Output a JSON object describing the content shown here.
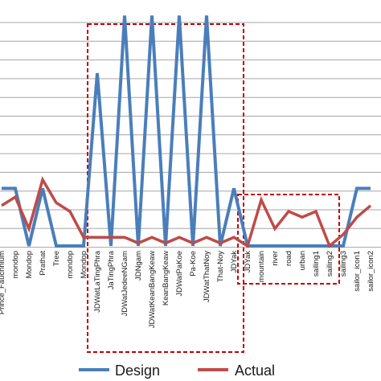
{
  "chart_data": {
    "type": "line",
    "categories": [
      "Prince_Faucnnium",
      "mondop",
      "Mondop",
      "Prathat",
      "Tree",
      "mondop",
      "Mondop",
      "JDWatLaTingPhra",
      "JaTingPhra",
      "JDWatJedeeNGam",
      "JDNgam",
      "JDWatKeanBangKeaw",
      "KeanBangKeaw",
      "JDWatPaKoe",
      "Pa-Koe",
      "JDWatThatNoy",
      "That-Noy",
      "JDYak",
      "JDYak",
      "mountain",
      "river",
      "road",
      "urban",
      "sailing1",
      "sailing2",
      "sailing3",
      "sailor_icon1",
      "sailor_icon2"
    ],
    "series": [
      {
        "name": "Design",
        "color": "#4a7ebb",
        "values": [
          1,
          1,
          0,
          1,
          0,
          0,
          0,
          3,
          0,
          4,
          0,
          4,
          0,
          4,
          0,
          4,
          0,
          1,
          0,
          0,
          0,
          0,
          0,
          0,
          0,
          0,
          1,
          1
        ]
      },
      {
        "name": "Actual",
        "color": "#be4b48",
        "values": [
          0.7,
          0.85,
          0.3,
          1.15,
          0.75,
          0.6,
          0.15,
          0.15,
          0.15,
          0.15,
          0.05,
          0.15,
          0.05,
          0.15,
          0.05,
          0.15,
          0.05,
          0.15,
          0.0,
          0.8,
          0.3,
          0.6,
          0.5,
          0.6,
          0.0,
          0.2,
          0.5,
          0.7
        ]
      }
    ],
    "ylim": [
      0,
      4.2
    ],
    "grid": true,
    "legend": "bottom",
    "highlight_boxes": [
      {
        "from_index": 7,
        "to_index": 17,
        "color": "#c00000",
        "style": "dashed"
      },
      {
        "from_index": 18,
        "to_index": 24,
        "color": "#c00000",
        "style": "dashed"
      }
    ]
  }
}
